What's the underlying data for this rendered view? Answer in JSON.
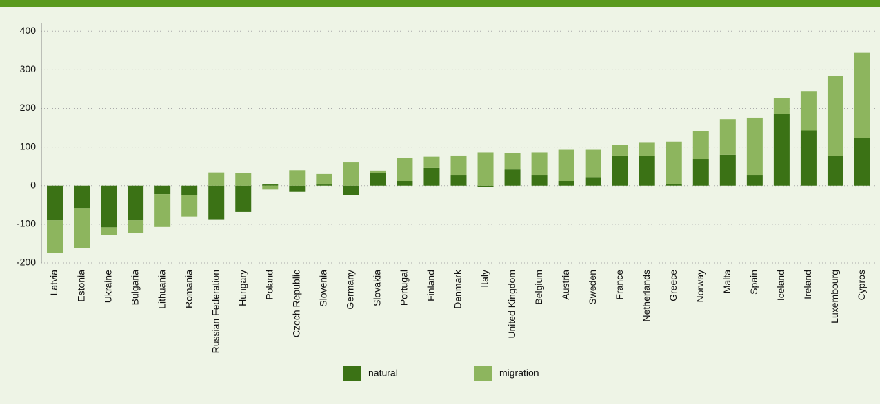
{
  "chart_data": {
    "type": "stacked-bar",
    "categories": [
      "Latvia",
      "Estonia",
      "Ukraine",
      "Bulgaria",
      "Lithuania",
      "Romania",
      "Russian Federation",
      "Hungary",
      "Poland",
      "Czech Republic",
      "Slovenia",
      "Germany",
      "Slovakia",
      "Portugal",
      "Finland",
      "Denmark",
      "Italy",
      "United Kingdom",
      "Belgium",
      "Austria",
      "Sweden",
      "France",
      "Netherlands",
      "Greece",
      "Norway",
      "Malta",
      "Spain",
      "Iceland",
      "Ireland",
      "Luxembourg",
      "Cypros"
    ],
    "series": [
      {
        "name": "natural",
        "color": "#3b7215",
        "values": [
          -90,
          -58,
          -108,
          -90,
          -22,
          -24,
          -87,
          -68,
          3,
          -16,
          3,
          -25,
          32,
          12,
          46,
          28,
          -3,
          42,
          28,
          12,
          22,
          78,
          77,
          4,
          69,
          80,
          28,
          185,
          143,
          77,
          123
        ]
      },
      {
        "name": "migration",
        "color": "#8db55e",
        "values": [
          -85,
          -103,
          -20,
          -32,
          -85,
          -56,
          34,
          33,
          -10,
          40,
          27,
          60,
          7,
          59,
          29,
          50,
          86,
          42,
          58,
          81,
          71,
          27,
          34,
          110,
          72,
          92,
          148,
          42,
          102,
          206,
          221
        ]
      }
    ],
    "ylim": [
      -200,
      420
    ],
    "yticks": [
      -200,
      -100,
      0,
      100,
      200,
      300,
      400
    ],
    "grid": true,
    "legend": "bottom"
  }
}
